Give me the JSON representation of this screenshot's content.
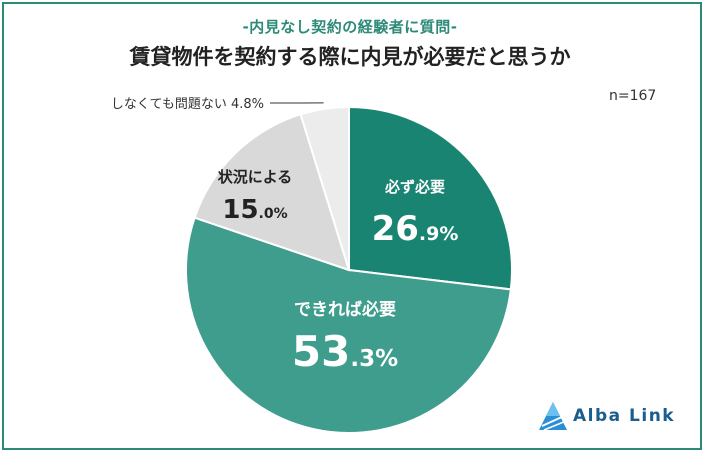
{
  "chart_data": {
    "type": "pie",
    "subtitle": "-内見なし契約の経験者に質問-",
    "title": "賃貸物件を契約する際に内見が必要だと思うか",
    "sample_size_label": "n=167",
    "slices": [
      {
        "label": "必ず必要",
        "value": 26.9,
        "value_main": "26",
        "value_dec": ".9%",
        "color": "#1a8472",
        "text_color": "#ffffff"
      },
      {
        "label": "できれば必要",
        "value": 53.3,
        "value_main": "53",
        "value_dec": ".3%",
        "color": "#3f9d8d",
        "text_color": "#ffffff"
      },
      {
        "label": "状況による",
        "value": 15.0,
        "value_main": "15",
        "value_dec": ".0%",
        "color": "#d9d9d9",
        "text_color": "#222222"
      },
      {
        "label": "しなくても問題ない",
        "value": 4.8,
        "value_text": "4.8%",
        "color": "#ececec",
        "text_color": "#333333"
      }
    ]
  },
  "logo": {
    "text": "Alba Link"
  }
}
